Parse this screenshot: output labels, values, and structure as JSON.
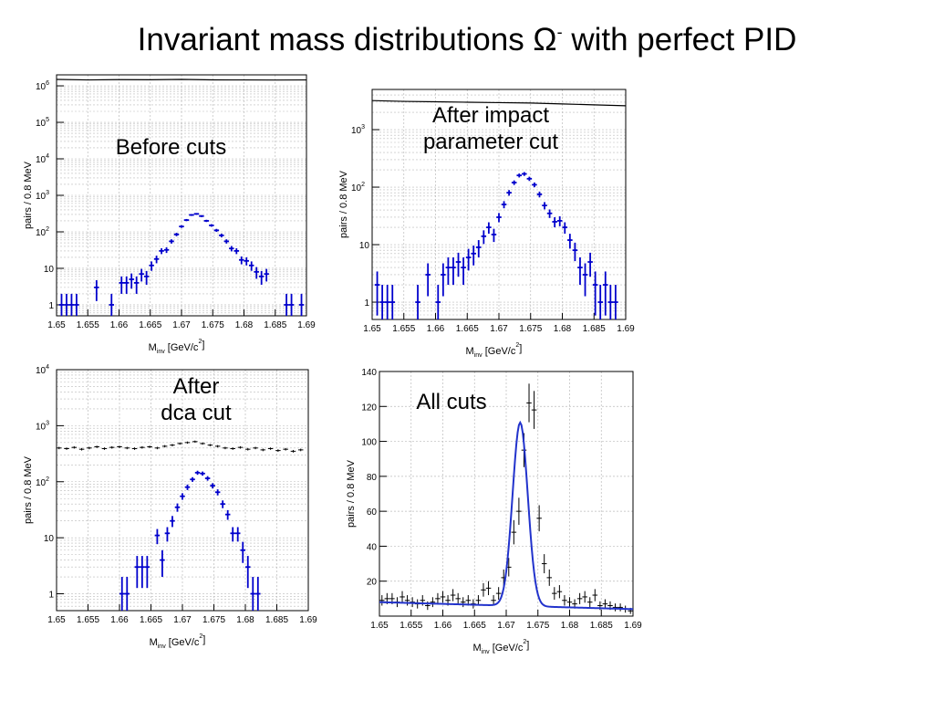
{
  "title": {
    "text": "Invariant mass distributions Ω",
    "sup": "-",
    "tail": " with perfect PID"
  },
  "colors": {
    "signal": "#0000cc",
    "background": "#000000",
    "fit": "#2233cc",
    "grid": "#bbbbbb"
  },
  "chart_data": [
    {
      "type": "scatter",
      "annotation": "Before cuts",
      "xlabel": "M",
      "xlabel_sub": "inv",
      "xlabel_unit": " [GeV/c",
      "xlabel_sup": "2",
      "xlabel_end": "]",
      "ylabel": "pairs / 0.8 MeV",
      "xlim": [
        1.65,
        1.69
      ],
      "ylim": [
        0.5,
        2000000
      ],
      "log_y": true,
      "grid": true,
      "xticks": [
        "1.65",
        "1.655",
        "1.66",
        "1.665",
        "1.67",
        "1.675",
        "1.68",
        "1.685",
        "1.69"
      ],
      "yticks": [
        {
          "v": 1,
          "t": "1",
          "e": ""
        },
        {
          "v": 10,
          "t": "10",
          "e": ""
        },
        {
          "v": 100,
          "t": "10",
          "e": "2"
        },
        {
          "v": 1000,
          "t": "10",
          "e": "3"
        },
        {
          "v": 10000,
          "t": "10",
          "e": "4"
        },
        {
          "v": 100000,
          "t": "10",
          "e": "5"
        },
        {
          "v": 1000000,
          "t": "10",
          "e": "6"
        }
      ],
      "series": [
        {
          "style": "bg-line",
          "x": [
            1.65,
            1.655,
            1.66,
            1.665,
            1.67,
            1.675,
            1.68,
            1.685,
            1.69
          ],
          "y": [
            1500000,
            1450000,
            1480000,
            1470000,
            1500000,
            1460000,
            1450000,
            1440000,
            1450000
          ]
        },
        {
          "style": "signal",
          "x": [
            1.6508,
            1.6516,
            1.6524,
            1.6532,
            1.6564,
            1.6588,
            1.6604,
            1.6612,
            1.662,
            1.6628,
            1.6636,
            1.6644,
            1.6652,
            1.666,
            1.6668,
            1.6676,
            1.6684,
            1.6692,
            1.67,
            1.6708,
            1.6716,
            1.6724,
            1.6732,
            1.674,
            1.6748,
            1.6756,
            1.6764,
            1.6772,
            1.678,
            1.6788,
            1.6796,
            1.6804,
            1.6812,
            1.682,
            1.6828,
            1.6836,
            1.6868,
            1.6876,
            1.6892
          ],
          "y": [
            1,
            1,
            1,
            1,
            3,
            1,
            4,
            4,
            5,
            4,
            7,
            6,
            12,
            18,
            30,
            32,
            55,
            85,
            140,
            210,
            290,
            310,
            270,
            200,
            150,
            110,
            80,
            55,
            35,
            30,
            17,
            16,
            12,
            8,
            6,
            7,
            1,
            1,
            1
          ]
        }
      ]
    },
    {
      "type": "scatter",
      "annotation": "After impact\nparameter cut",
      "xlabel": "M",
      "xlabel_sub": "inv",
      "xlabel_unit": " [GeV/c",
      "xlabel_sup": "2",
      "xlabel_end": "]",
      "ylabel": "pairs / 0.8 MeV",
      "xlim": [
        1.65,
        1.69
      ],
      "ylim": [
        0.5,
        5000
      ],
      "log_y": true,
      "grid": true,
      "xticks": [
        "1.65",
        "1.655",
        "1.66",
        "1.665",
        "1.67",
        "1.675",
        "1.68",
        "1.685",
        "1.69"
      ],
      "yticks": [
        {
          "v": 1,
          "t": "1",
          "e": ""
        },
        {
          "v": 10,
          "t": "10",
          "e": ""
        },
        {
          "v": 100,
          "t": "10",
          "e": "2"
        },
        {
          "v": 1000,
          "t": "10",
          "e": "3"
        }
      ],
      "series": [
        {
          "style": "bg-line",
          "x": [
            1.65,
            1.655,
            1.66,
            1.665,
            1.67,
            1.675,
            1.68,
            1.685,
            1.69
          ],
          "y": [
            3200,
            3100,
            3050,
            3000,
            2950,
            2900,
            2800,
            2700,
            2600
          ]
        },
        {
          "style": "signal",
          "x": [
            1.6508,
            1.6516,
            1.6524,
            1.6532,
            1.6572,
            1.6588,
            1.6604,
            1.6612,
            1.662,
            1.6628,
            1.6636,
            1.6644,
            1.6652,
            1.666,
            1.6668,
            1.6676,
            1.6684,
            1.6692,
            1.67,
            1.6708,
            1.6716,
            1.6724,
            1.6732,
            1.674,
            1.6748,
            1.6756,
            1.6764,
            1.6772,
            1.678,
            1.6788,
            1.6796,
            1.6804,
            1.6812,
            1.682,
            1.6828,
            1.6836,
            1.6844,
            1.6852,
            1.686,
            1.6868,
            1.6876,
            1.6884
          ],
          "y": [
            2,
            1,
            1,
            1,
            1,
            3,
            1,
            3,
            4,
            4,
            5,
            4,
            6,
            7,
            9,
            14,
            20,
            15,
            30,
            50,
            80,
            120,
            160,
            170,
            140,
            110,
            75,
            48,
            35,
            25,
            26,
            20,
            12,
            8,
            4,
            3,
            5,
            2,
            1,
            2,
            1,
            1
          ]
        }
      ]
    },
    {
      "type": "scatter",
      "annotation": "After\ndca cut",
      "xlabel": "M",
      "xlabel_sub": "inv",
      "xlabel_unit": " [GeV/c",
      "xlabel_sup": "2",
      "xlabel_end": "]",
      "ylabel": "pairs / 0.8 MeV",
      "xlim": [
        1.65,
        1.69
      ],
      "ylim": [
        0.5,
        10000
      ],
      "log_y": true,
      "grid": true,
      "xticks": [
        "1.65",
        "1.655",
        "1.66",
        "1.665",
        "1.67",
        "1.675",
        "1.68",
        "1.685",
        "1.69"
      ],
      "yticks": [
        {
          "v": 1,
          "t": "1",
          "e": ""
        },
        {
          "v": 10,
          "t": "10",
          "e": ""
        },
        {
          "v": 100,
          "t": "10",
          "e": "2"
        },
        {
          "v": 1000,
          "t": "10",
          "e": "3"
        },
        {
          "v": 10000,
          "t": "10",
          "e": "4"
        }
      ],
      "series": [
        {
          "style": "bg-points",
          "x": [
            1.6504,
            1.6516,
            1.6528,
            1.654,
            1.6552,
            1.6564,
            1.6576,
            1.6588,
            1.66,
            1.6612,
            1.6624,
            1.6636,
            1.6648,
            1.666,
            1.6672,
            1.6684,
            1.6696,
            1.6708,
            1.672,
            1.6732,
            1.6744,
            1.6756,
            1.6768,
            1.678,
            1.6792,
            1.6804,
            1.6816,
            1.6828,
            1.684,
            1.6852,
            1.6864,
            1.6876,
            1.6888
          ],
          "y": [
            400,
            390,
            410,
            380,
            400,
            420,
            390,
            410,
            420,
            400,
            390,
            410,
            420,
            400,
            430,
            450,
            480,
            500,
            520,
            480,
            450,
            430,
            400,
            390,
            410,
            380,
            400,
            370,
            390,
            360,
            380,
            350,
            370
          ]
        },
        {
          "style": "signal",
          "x": [
            1.6604,
            1.6612,
            1.6628,
            1.6636,
            1.6644,
            1.666,
            1.6668,
            1.6676,
            1.6684,
            1.6692,
            1.67,
            1.6708,
            1.6716,
            1.6724,
            1.6732,
            1.674,
            1.6748,
            1.6756,
            1.6764,
            1.6772,
            1.678,
            1.6788,
            1.6796,
            1.6804,
            1.6812,
            1.682
          ],
          "y": [
            1,
            1,
            3,
            3,
            3,
            11,
            4,
            12,
            20,
            35,
            55,
            80,
            110,
            145,
            140,
            115,
            85,
            65,
            40,
            26,
            12,
            12,
            6,
            3,
            1,
            1
          ]
        }
      ]
    },
    {
      "type": "scatter",
      "annotation": "All cuts",
      "xlabel": "M",
      "xlabel_sub": "inv",
      "xlabel_unit": " [GeV/c",
      "xlabel_sup": "2",
      "xlabel_end": "]",
      "ylabel": "pairs / 0.8 MeV",
      "xlim": [
        1.65,
        1.69
      ],
      "ylim": [
        0,
        140
      ],
      "log_y": false,
      "grid": true,
      "xticks": [
        "1.65",
        "1.655",
        "1.66",
        "1.665",
        "1.67",
        "1.675",
        "1.68",
        "1.685",
        "1.69"
      ],
      "yticks": [
        {
          "v": 20,
          "t": "20",
          "e": ""
        },
        {
          "v": 40,
          "t": "40",
          "e": ""
        },
        {
          "v": 60,
          "t": "60",
          "e": ""
        },
        {
          "v": 80,
          "t": "80",
          "e": ""
        },
        {
          "v": 100,
          "t": "100",
          "e": ""
        },
        {
          "v": 120,
          "t": "120",
          "e": ""
        },
        {
          "v": 140,
          "t": "140",
          "e": ""
        }
      ],
      "fit": {
        "mean": 1.6722,
        "sigma": 0.0012,
        "amplitude": 105,
        "bg_start": 8,
        "bg_end": 4
      },
      "series": [
        {
          "style": "data-points",
          "x": [
            1.6504,
            1.6512,
            1.652,
            1.6528,
            1.6536,
            1.6544,
            1.6552,
            1.656,
            1.6568,
            1.6576,
            1.6584,
            1.6592,
            1.66,
            1.6608,
            1.6616,
            1.6624,
            1.6632,
            1.664,
            1.6648,
            1.6656,
            1.6664,
            1.6672,
            1.668,
            1.6688,
            1.6696,
            1.6704,
            1.6712,
            1.672,
            1.6728,
            1.6736,
            1.6744,
            1.6752,
            1.676,
            1.6768,
            1.6776,
            1.6784,
            1.6792,
            1.68,
            1.6808,
            1.6816,
            1.6824,
            1.6832,
            1.684,
            1.6848,
            1.6856,
            1.6864,
            1.6872,
            1.688,
            1.6888,
            1.6896
          ],
          "y": [
            9,
            10,
            10,
            8,
            11,
            9,
            8,
            7,
            9,
            6,
            8,
            10,
            11,
            9,
            12,
            10,
            8,
            9,
            7,
            9,
            15,
            16,
            9,
            13,
            22,
            28,
            48,
            60,
            95,
            122,
            118,
            56,
            30,
            22,
            13,
            14,
            9,
            8,
            7,
            10,
            11,
            8,
            12,
            6,
            7,
            6,
            5,
            5,
            4,
            3
          ]
        }
      ]
    }
  ]
}
